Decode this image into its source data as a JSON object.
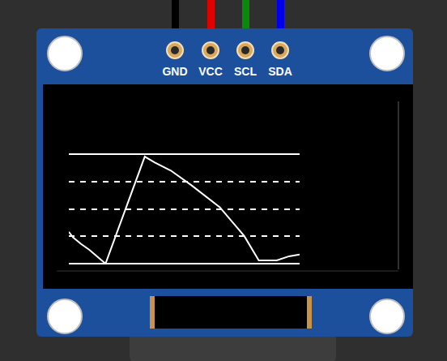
{
  "pins": [
    "GND",
    "VCC",
    "SCL",
    "SDA"
  ],
  "chart_data": {
    "type": "line",
    "x": [
      0,
      1.8,
      5.3,
      8.8,
      15.9,
      32.9,
      37.1,
      44.2,
      53.0,
      65.4,
      76.0,
      82.3,
      90.1,
      95.4,
      100
    ],
    "values": [
      1.16,
      0.96,
      0.72,
      0.51,
      0,
      3.91,
      3.7,
      3.4,
      2.87,
      2.06,
      1.01,
      0.12,
      0.12,
      0.27,
      0.33
    ],
    "xlim": [
      0,
      100
    ],
    "ylim": [
      0,
      4
    ],
    "yticks": [
      0,
      1,
      2,
      3,
      4
    ],
    "grid": true,
    "tick_labels": false,
    "color": "#ffffff"
  }
}
